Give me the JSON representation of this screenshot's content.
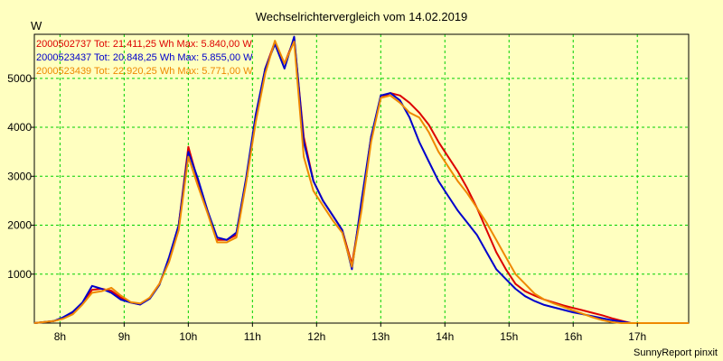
{
  "chart_data": {
    "type": "line",
    "title": "Wechselrichtervergleich vom 14.02.2019",
    "ylabel": "W",
    "xlabel": "",
    "ylim": [
      0,
      5900
    ],
    "yticks": [
      1000,
      2000,
      3000,
      4000,
      5000
    ],
    "xlim": [
      7.6,
      17.8
    ],
    "xticks": [
      {
        "value": 8,
        "label": "8h"
      },
      {
        "value": 9,
        "label": "9h"
      },
      {
        "value": 10,
        "label": "10h"
      },
      {
        "value": 11,
        "label": "11h"
      },
      {
        "value": 12,
        "label": "12h"
      },
      {
        "value": 13,
        "label": "13h"
      },
      {
        "value": 14,
        "label": "14h"
      },
      {
        "value": 15,
        "label": "15h"
      },
      {
        "value": 16,
        "label": "16h"
      },
      {
        "value": 17,
        "label": "17h"
      }
    ],
    "grid": true,
    "x": [
      7.6,
      7.75,
      7.9,
      8.05,
      8.2,
      8.35,
      8.5,
      8.65,
      8.8,
      8.95,
      9.1,
      9.25,
      9.4,
      9.55,
      9.7,
      9.85,
      10.0,
      10.15,
      10.3,
      10.45,
      10.6,
      10.75,
      10.9,
      11.05,
      11.2,
      11.35,
      11.5,
      11.65,
      11.8,
      11.95,
      12.1,
      12.25,
      12.4,
      12.55,
      12.7,
      12.85,
      13.0,
      13.15,
      13.3,
      13.45,
      13.6,
      13.75,
      13.9,
      14.05,
      14.2,
      14.35,
      14.5,
      14.65,
      14.8,
      14.95,
      15.1,
      15.25,
      15.4,
      15.55,
      15.7,
      15.85,
      16.0,
      16.15,
      16.3,
      16.45,
      16.6,
      16.75,
      16.9,
      17.05,
      17.2,
      17.35,
      17.5,
      17.65,
      17.8
    ],
    "series": [
      {
        "name": "2000502737",
        "legend": "2000502737 Tot: 21.411,25 Wh Max: 5.840,00 W",
        "color": "#dd0000",
        "values": [
          0,
          20,
          40,
          100,
          200,
          400,
          680,
          700,
          660,
          520,
          420,
          380,
          520,
          800,
          1300,
          2000,
          3600,
          2900,
          2300,
          1700,
          1700,
          1800,
          2900,
          4200,
          5200,
          5750,
          5300,
          5800,
          3800,
          2900,
          2500,
          2200,
          1900,
          1200,
          2400,
          3800,
          4600,
          4700,
          4650,
          4500,
          4300,
          4050,
          3700,
          3400,
          3100,
          2750,
          2350,
          1900,
          1450,
          1100,
          800,
          650,
          560,
          480,
          420,
          360,
          310,
          260,
          210,
          160,
          100,
          50,
          0,
          0,
          0,
          0,
          0,
          0,
          0
        ]
      },
      {
        "name": "2000523437",
        "legend": "2000523437 Tot: 20.848,25 Wh Max: 5.855,00 W",
        "color": "#0000cc",
        "values": [
          0,
          20,
          40,
          120,
          230,
          420,
          760,
          700,
          620,
          480,
          420,
          380,
          500,
          780,
          1350,
          2000,
          3500,
          2950,
          2300,
          1750,
          1700,
          1850,
          2950,
          4250,
          5200,
          5700,
          5200,
          5850,
          3700,
          2900,
          2500,
          2200,
          1900,
          1100,
          2500,
          3800,
          4650,
          4700,
          4550,
          4200,
          3700,
          3300,
          2900,
          2600,
          2300,
          2050,
          1800,
          1450,
          1100,
          900,
          700,
          550,
          450,
          370,
          320,
          270,
          220,
          180,
          140,
          100,
          60,
          30,
          0,
          0,
          0,
          0,
          0,
          0,
          0
        ]
      },
      {
        "name": "2000523439",
        "legend": "2000523439 Tot: 22.920,25 Wh Max: 5.771,00 W",
        "color": "#ee8800",
        "values": [
          0,
          20,
          40,
          90,
          180,
          380,
          620,
          650,
          720,
          560,
          430,
          400,
          520,
          800,
          1250,
          1900,
          3400,
          2800,
          2250,
          1650,
          1650,
          1750,
          2850,
          4100,
          5100,
          5770,
          5300,
          5750,
          3400,
          2700,
          2400,
          2100,
          1850,
          1150,
          2300,
          3700,
          4600,
          4650,
          4500,
          4300,
          4200,
          3900,
          3500,
          3200,
          2900,
          2650,
          2350,
          2050,
          1700,
          1350,
          1000,
          800,
          600,
          480,
          400,
          330,
          260,
          190,
          120,
          60,
          20,
          0,
          0,
          0,
          0,
          0,
          0,
          0,
          0
        ]
      }
    ],
    "credit": "SunnyReport pinxit"
  }
}
